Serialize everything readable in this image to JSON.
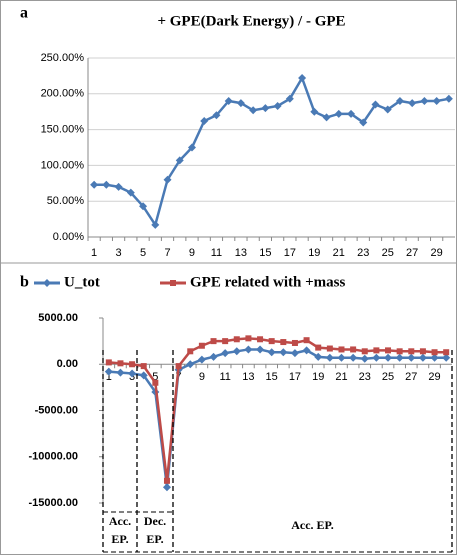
{
  "chart_data": [
    {
      "type": "line",
      "label": "a",
      "title": "+ GPE(Dark Energy) / - GPE",
      "categories": [
        1,
        null,
        3,
        null,
        5,
        null,
        7,
        null,
        9,
        null,
        11,
        null,
        13,
        null,
        15,
        null,
        17,
        null,
        19,
        null,
        21,
        null,
        23,
        null,
        25,
        null,
        27,
        null,
        29,
        null
      ],
      "series": [
        {
          "name": null,
          "color": "#4a7ab5",
          "marker": "diamond",
          "values": [
            73,
            73,
            70,
            62,
            43,
            17,
            80,
            107,
            125,
            162,
            170,
            190,
            187,
            177,
            180,
            183,
            193,
            222,
            175,
            167,
            172,
            172,
            160,
            185,
            178,
            190,
            187,
            190,
            190,
            193
          ]
        }
      ],
      "ylim": [
        0,
        250
      ],
      "yticks": [
        {
          "value": 0,
          "label": "0.00%"
        },
        {
          "value": 50,
          "label": "50.00%"
        },
        {
          "value": 100,
          "label": "100.00%"
        },
        {
          "value": 150,
          "label": "150.00%"
        },
        {
          "value": 200,
          "label": "200.00%"
        },
        {
          "value": 250,
          "label": "250.00%"
        }
      ],
      "grid": true
    },
    {
      "type": "line",
      "label": "b",
      "categories": [
        1,
        null,
        3,
        null,
        5,
        null,
        7,
        null,
        9,
        null,
        11,
        null,
        13,
        null,
        15,
        null,
        17,
        null,
        19,
        null,
        21,
        null,
        23,
        null,
        25,
        null,
        27,
        null,
        29,
        null
      ],
      "series": [
        {
          "name": "U_tot",
          "color": "#4a7ab5",
          "marker": "diamond",
          "values": [
            -800,
            -900,
            -1000,
            -1200,
            -3000,
            -13300,
            -600,
            0,
            500,
            800,
            1200,
            1400,
            1600,
            1600,
            1300,
            1300,
            1200,
            1500,
            800,
            700,
            700,
            700,
            600,
            700,
            700,
            700,
            700,
            700,
            700,
            700
          ]
        },
        {
          "name": "GPE related with +mass",
          "color": "#be4b48",
          "marker": "square",
          "values": [
            200,
            100,
            0,
            -200,
            -2000,
            -12600,
            -200,
            1400,
            2000,
            2500,
            2500,
            2700,
            2800,
            2700,
            2500,
            2400,
            2300,
            2600,
            1800,
            1700,
            1600,
            1600,
            1400,
            1500,
            1500,
            1400,
            1400,
            1400,
            1300,
            1300
          ]
        }
      ],
      "ylim": [
        -15000,
        5000
      ],
      "yticks": [
        {
          "value": -15000,
          "label": "-15000.00"
        },
        {
          "value": -10000,
          "label": "-10000.00"
        },
        {
          "value": -5000,
          "label": "-5000.00"
        },
        {
          "value": 0,
          "label": "0.00"
        },
        {
          "value": 5000,
          "label": "5000.00"
        }
      ],
      "grid": false,
      "annotations": [
        {
          "lines": [
            "Acc.",
            "EP."
          ]
        },
        {
          "lines": [
            "Dec.",
            "EP."
          ]
        },
        {
          "lines": [
            "Acc. EP."
          ]
        }
      ]
    }
  ]
}
